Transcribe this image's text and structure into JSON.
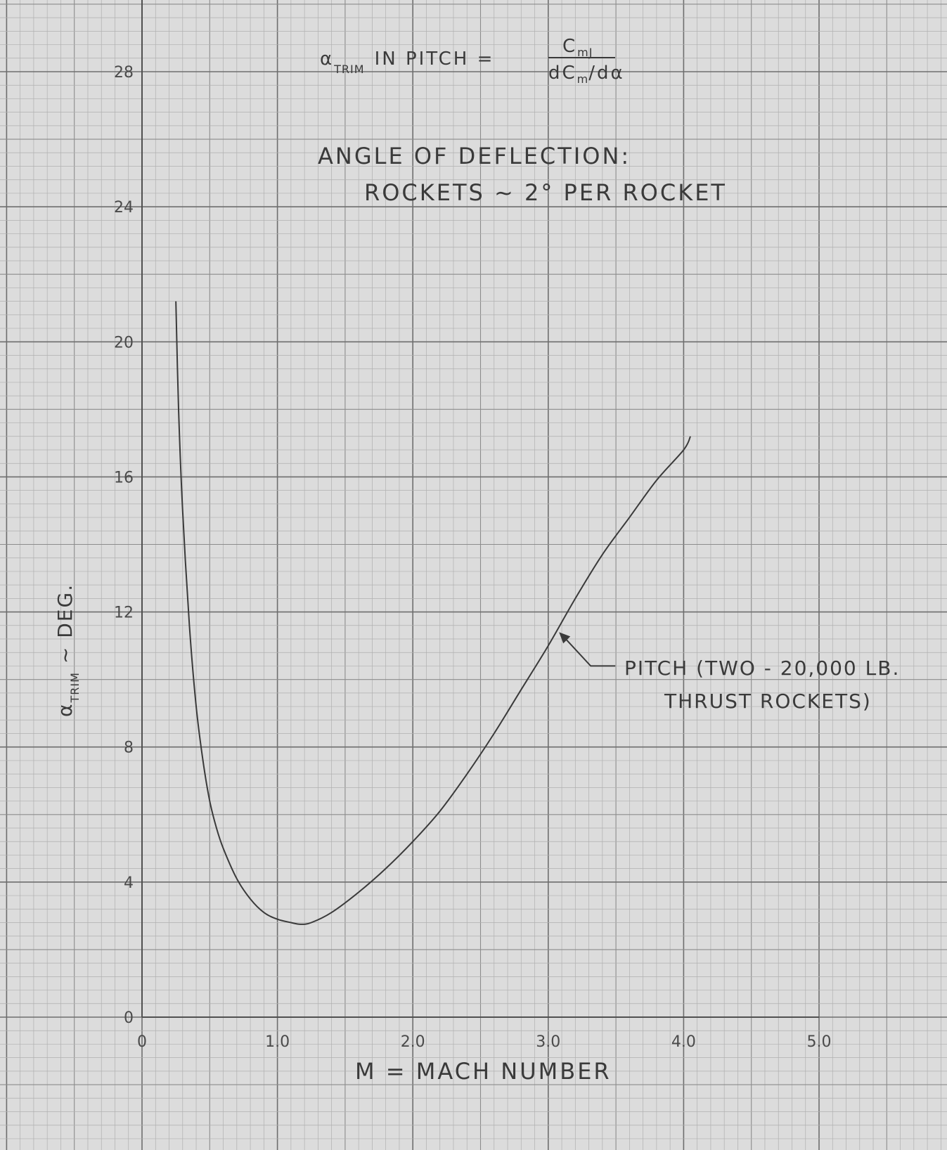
{
  "chart_data": {
    "type": "line",
    "formula": {
      "lhs_symbol": "α",
      "lhs_subscript": "TRIM",
      "lhs_text": "IN PITCH =",
      "numerator": "C",
      "numerator_subscript": "mJ",
      "denominator": "dC",
      "denominator_subscript": "m",
      "denominator_tail": "/dα"
    },
    "title": "ANGLE OF DEFLECTION:",
    "subtitle": "ROCKETS ~ 2° PER ROCKET",
    "xlabel": "M = MACH NUMBER",
    "ylabel_symbol": "α",
    "ylabel_subscript": "TRIM",
    "ylabel_text": "~ DEG.",
    "xlim": [
      0,
      5.0
    ],
    "ylim": [
      0,
      28
    ],
    "x_tick_labels": [
      "0",
      "1.0",
      "2.0",
      "3.0",
      "4.0",
      "5.0"
    ],
    "y_tick_labels": [
      "0",
      "4",
      "8",
      "12",
      "16",
      "20",
      "24",
      "28"
    ],
    "x_ticks": [
      0,
      1,
      2,
      3,
      4,
      5
    ],
    "y_ticks": [
      0,
      4,
      8,
      12,
      16,
      20,
      24,
      28
    ],
    "grid": true,
    "series": [
      {
        "annotation_line1": "PITCH (TWO - 20,000 LB.",
        "annotation_line2": "THRUST ROCKETS)",
        "annotation_at": [
          3.08,
          11.4
        ],
        "color": "#3a3a3a",
        "x": [
          0.25,
          0.27,
          0.3,
          0.35,
          0.4,
          0.45,
          0.5,
          0.55,
          0.6,
          0.7,
          0.8,
          0.9,
          1.0,
          1.1,
          1.17,
          1.25,
          1.4,
          1.6,
          1.8,
          2.0,
          2.2,
          2.4,
          2.6,
          2.8,
          3.0,
          3.2,
          3.4,
          3.6,
          3.8,
          4.0,
          4.05
        ],
        "y": [
          21.2,
          18.0,
          15.0,
          11.6,
          9.2,
          7.6,
          6.4,
          5.6,
          5.0,
          4.1,
          3.5,
          3.1,
          2.9,
          2.8,
          2.75,
          2.8,
          3.1,
          3.7,
          4.4,
          5.2,
          6.1,
          7.2,
          8.4,
          9.7,
          11.0,
          12.4,
          13.7,
          14.8,
          15.9,
          16.8,
          17.2
        ]
      }
    ]
  }
}
